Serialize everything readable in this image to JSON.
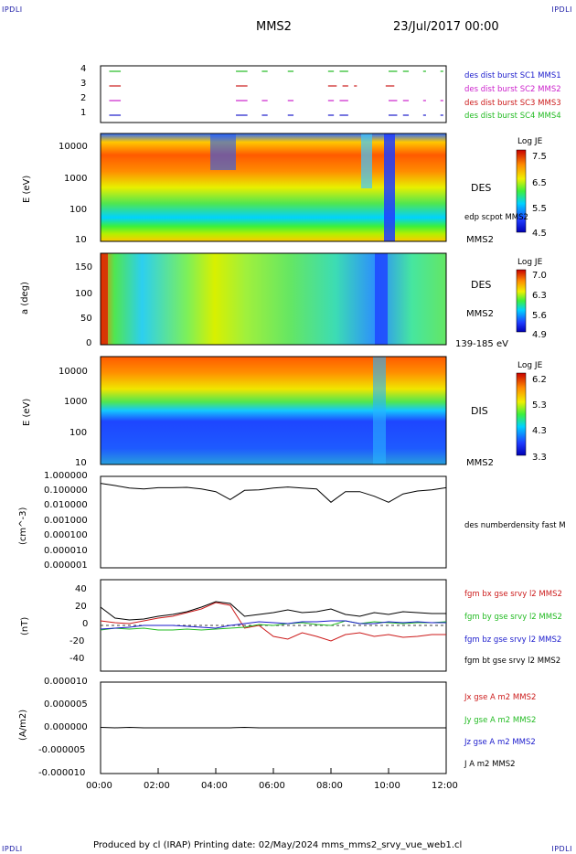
{
  "header": {
    "corner_tl": "IPDLI",
    "corner_tr": "IPDLI",
    "corner_bl": "IPDLI",
    "corner_br": "IPDLI",
    "spacecraft": "MMS2",
    "date_time": "23/Jul/2017 00:00"
  },
  "footer": {
    "text": "Produced by cl (IRAP)   Printing date: 02/May/2024   mms_mms2_srvy_vue_web1.cl"
  },
  "x_axis": {
    "ticks": [
      "00:00",
      "02:00",
      "04:00",
      "06:00",
      "08:00",
      "10:00",
      "12:00"
    ]
  },
  "panels": {
    "burst": {
      "yticks": [
        "4",
        "3",
        "2",
        "1"
      ],
      "labels": [
        {
          "text": "des dist burst SC1 MMS1",
          "color": "#1a1acc"
        },
        {
          "text": "des dist burst SC2 MMS2",
          "color": "#cc22cc"
        },
        {
          "text": "des dist burst SC3 MMS3",
          "color": "#cc1a1a"
        },
        {
          "text": "des dist burst SC4 MMS4",
          "color": "#22bb22"
        }
      ]
    },
    "des_energy": {
      "ylabel": "E (eV)",
      "yticks": [
        "10000",
        "1000",
        "100",
        "10"
      ],
      "label_des": "DES",
      "label_edp": "edp scpot MMS2",
      "label_sc": "MMS2",
      "cbar_title": "Log JE",
      "cbar_ticks": [
        "7.5",
        "6.5",
        "5.5",
        "4.5"
      ]
    },
    "des_pitch": {
      "ylabel": "a (deg)",
      "yticks": [
        "150",
        "100",
        "50",
        "0"
      ],
      "label_des": "DES",
      "label_sc": "MMS2",
      "label_range": "139-185 eV",
      "cbar_title": "Log JE",
      "cbar_ticks": [
        "7.0",
        "6.3",
        "5.6",
        "4.9"
      ]
    },
    "dis_energy": {
      "ylabel": "E (eV)",
      "yticks": [
        "10000",
        "1000",
        "100",
        "10"
      ],
      "label_dis": "DIS",
      "label_sc": "MMS2",
      "cbar_title": "Log JE",
      "cbar_ticks": [
        "6.2",
        "5.3",
        "4.3",
        "3.3"
      ]
    },
    "density": {
      "ylabel": "(cm^-3)",
      "yticks": [
        "1.000000",
        "0.100000",
        "0.010000",
        "0.001000",
        "0.000100",
        "0.000010",
        "0.000001"
      ],
      "label": "des numberdensity fast M"
    },
    "fgm": {
      "ylabel": "(nT)",
      "yticks": [
        "40",
        "20",
        "0",
        "-20",
        "-40"
      ],
      "labels": [
        {
          "text": "fgm bx gse srvy l2 MMS2",
          "color": "#cc1a1a"
        },
        {
          "text": "fgm by gse srvy l2 MMS2",
          "color": "#22bb22"
        },
        {
          "text": "fgm bz gse srvy l2 MMS2",
          "color": "#1a1acc"
        },
        {
          "text": "fgm bt gse srvy l2 MMS2",
          "color": "#000000"
        }
      ]
    },
    "current": {
      "ylabel": "(A/m2)",
      "yticks": [
        "0.000010",
        "0.000005",
        "0.000000",
        "-0.000005",
        "-0.000010"
      ],
      "labels": [
        {
          "text": "Jx gse A m2 MMS2",
          "color": "#cc1a1a"
        },
        {
          "text": "Jy gse A m2 MMS2",
          "color": "#22bb22"
        },
        {
          "text": "Jz gse A m2 MMS2",
          "color": "#1a1acc"
        },
        {
          "text": "J A m2 MMS2",
          "color": "#000000"
        }
      ]
    }
  },
  "chart_data": {
    "type": "line",
    "x_hours": [
      0,
      0.5,
      1,
      1.5,
      2,
      2.5,
      3,
      3.5,
      4,
      4.5,
      5,
      5.5,
      6,
      6.5,
      7,
      7.5,
      8,
      8.5,
      9,
      9.5,
      10,
      10.5,
      11,
      11.5,
      12
    ],
    "density_cm3": [
      0.35,
      0.25,
      0.17,
      0.15,
      0.18,
      0.18,
      0.19,
      0.15,
      0.1,
      0.03,
      0.12,
      0.13,
      0.17,
      0.2,
      0.17,
      0.15,
      0.02,
      0.1,
      0.1,
      0.05,
      0.02,
      0.07,
      0.11,
      0.13,
      0.18
    ],
    "series": [
      {
        "name": "fgm bx gse srvy l2 MMS2",
        "values": [
          5,
          3,
          2,
          5,
          8,
          10,
          14,
          18,
          25,
          22,
          -3,
          0,
          -12,
          -15,
          -8,
          -12,
          -17,
          -10,
          -8,
          -12,
          -10,
          -13,
          -12,
          -10,
          -10
        ]
      },
      {
        "name": "fgm by gse srvy l2 MMS2",
        "values": [
          -5,
          -3,
          -4,
          -3,
          -5,
          -5,
          -4,
          -5,
          -4,
          -3,
          -2,
          1,
          0,
          2,
          3,
          1,
          0,
          5,
          2,
          4,
          3,
          2,
          3,
          3,
          4
        ]
      },
      {
        "name": "fgm bz gse srvy l2 MMS2",
        "values": [
          -4,
          -3,
          -2,
          0,
          0,
          0,
          -1,
          -2,
          -3,
          0,
          2,
          4,
          3,
          2,
          4,
          4,
          5,
          5,
          2,
          2,
          4,
          3,
          4,
          3,
          3
        ]
      },
      {
        "name": "fgm bt gse srvy l2 MMS2",
        "values": [
          20,
          8,
          6,
          7,
          10,
          12,
          15,
          20,
          26,
          24,
          10,
          12,
          14,
          17,
          14,
          15,
          18,
          12,
          10,
          14,
          12,
          15,
          14,
          13,
          13
        ]
      },
      {
        "name": "J A m2 MMS2",
        "values": [
          1e-07,
          0,
          1e-07,
          0,
          0,
          0,
          0,
          0,
          0,
          0,
          1e-07,
          0,
          0,
          0,
          0,
          0,
          0,
          0,
          0,
          0,
          0,
          0,
          0,
          0,
          0
        ]
      }
    ],
    "burst_intervals_hours": {
      "4": [
        [
          0.3,
          0.7
        ],
        [
          4.7,
          5.1
        ],
        [
          5.6,
          5.8
        ],
        [
          6.5,
          6.7
        ],
        [
          7.9,
          8.1
        ],
        [
          8.3,
          8.6
        ],
        [
          10.0,
          10.3
        ],
        [
          10.5,
          10.7
        ],
        [
          11.2,
          11.3
        ],
        [
          11.8,
          11.9
        ]
      ],
      "3": [
        [
          0.3,
          0.7
        ],
        [
          4.7,
          5.1
        ],
        [
          7.9,
          8.2
        ],
        [
          8.4,
          8.6
        ],
        [
          8.8,
          8.9
        ],
        [
          9.9,
          10.2
        ]
      ],
      "2": [
        [
          0.3,
          0.7
        ],
        [
          4.7,
          5.1
        ],
        [
          5.6,
          5.8
        ],
        [
          6.5,
          6.7
        ],
        [
          7.9,
          8.1
        ],
        [
          8.3,
          8.6
        ],
        [
          10.0,
          10.3
        ],
        [
          10.5,
          10.7
        ],
        [
          11.2,
          11.3
        ],
        [
          11.8,
          11.9
        ]
      ],
      "1": [
        [
          0.3,
          0.7
        ],
        [
          4.7,
          5.1
        ],
        [
          5.6,
          5.8
        ],
        [
          6.5,
          6.7
        ],
        [
          7.9,
          8.1
        ],
        [
          8.3,
          8.6
        ],
        [
          10.0,
          10.3
        ],
        [
          10.5,
          10.7
        ],
        [
          11.2,
          11.3
        ],
        [
          11.8,
          11.9
        ]
      ]
    },
    "x_range_hours": [
      0,
      12
    ],
    "density_ylim": [
      1e-06,
      1
    ],
    "fgm_ylim": [
      -50,
      50
    ],
    "current_ylim": [
      -1e-05,
      1e-05
    ]
  }
}
